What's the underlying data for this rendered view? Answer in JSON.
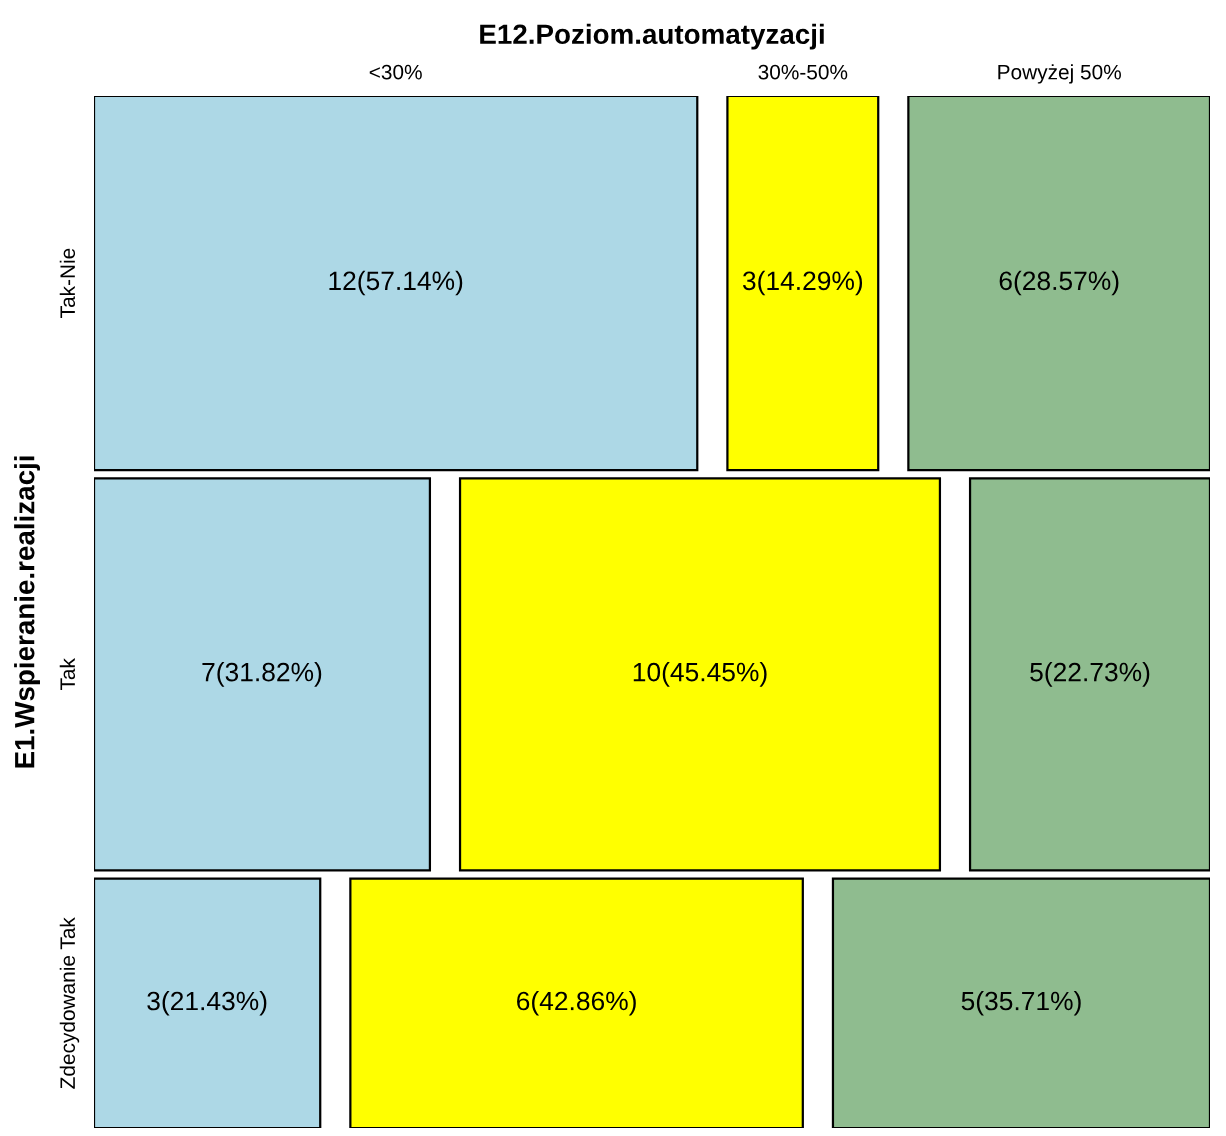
{
  "chart_data": {
    "type": "other",
    "title": "E12.Poziom.automatyzacji",
    "ylabel": "E1.Wspieranie.realizacji",
    "categories": [
      "Tak-Nie",
      "Tak",
      "Zdecydowanie Tak"
    ],
    "series": [
      {
        "name": "<30%",
        "color": "#add8e6",
        "values": [
          12,
          7,
          3
        ],
        "value_labels": [
          "12(57.14%)",
          "7(31.82%)",
          "3(21.43%)"
        ]
      },
      {
        "name": "30%-50%",
        "color": "#ffff00",
        "values": [
          3,
          10,
          6
        ],
        "value_labels": [
          "3(14.29%)",
          "10(45.45%)",
          "6(42.86%)"
        ]
      },
      {
        "name": "Powyżej 50%",
        "color": "#8fbc8f",
        "values": [
          6,
          5,
          5
        ],
        "value_labels": [
          "6(28.57%)",
          "5(22.73%)",
          "5(35.71%)"
        ]
      }
    ]
  }
}
